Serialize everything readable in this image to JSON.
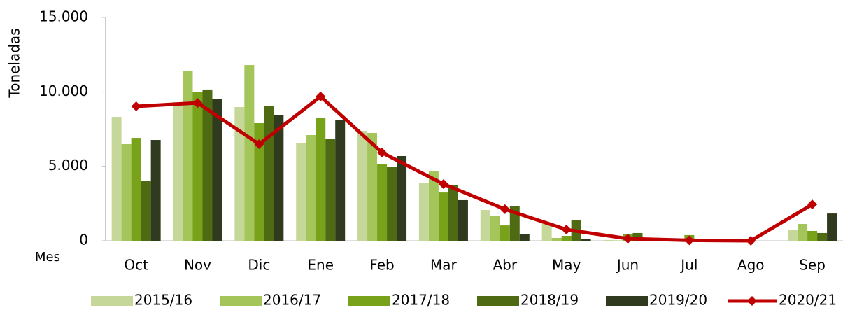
{
  "chart_data": {
    "type": "bar",
    "ylabel": "Toneladas",
    "xlabel": "Mes",
    "categories": [
      "Oct",
      "Nov",
      "Dic",
      "Ene",
      "Feb",
      "Mar",
      "Abr",
      "May",
      "Jun",
      "Jul",
      "Ago",
      "Sep"
    ],
    "series": [
      {
        "name": "2015/16",
        "color": "#c5d89a",
        "values": [
          8320,
          9310,
          8980,
          6580,
          7380,
          3860,
          2070,
          1220,
          50,
          0,
          0,
          750
        ]
      },
      {
        "name": "2016/17",
        "color": "#a3c55a",
        "values": [
          6490,
          11380,
          11800,
          7100,
          7240,
          4700,
          1650,
          190,
          20,
          0,
          0,
          1130
        ]
      },
      {
        "name": "2017/18",
        "color": "#77a21a",
        "values": [
          6910,
          9970,
          7900,
          8230,
          5170,
          3240,
          1030,
          330,
          470,
          380,
          0,
          660
        ]
      },
      {
        "name": "2018/19",
        "color": "#4e6b14",
        "values": [
          4040,
          10160,
          9070,
          6860,
          4940,
          3760,
          2350,
          1410,
          520,
          0,
          0,
          520
        ]
      },
      {
        "name": "2019/20",
        "color": "#2f3a1e",
        "values": [
          6770,
          9500,
          8460,
          8130,
          5690,
          2730,
          470,
          140,
          0,
          0,
          0,
          1830
        ]
      },
      {
        "name": "2020/21",
        "color": "#c00000",
        "type": "line",
        "values": [
          9030,
          9260,
          6490,
          9690,
          5920,
          3810,
          2120,
          750,
          140,
          30,
          0,
          2440
        ]
      }
    ],
    "ylim": [
      0,
      15000
    ],
    "yticks": [
      0,
      {
        "value": 5000,
        "label": "5.000"
      },
      {
        "value": 10000,
        "label": "10.000"
      },
      {
        "value": 15000,
        "label": "15.000"
      }
    ],
    "legend": "bottom"
  }
}
